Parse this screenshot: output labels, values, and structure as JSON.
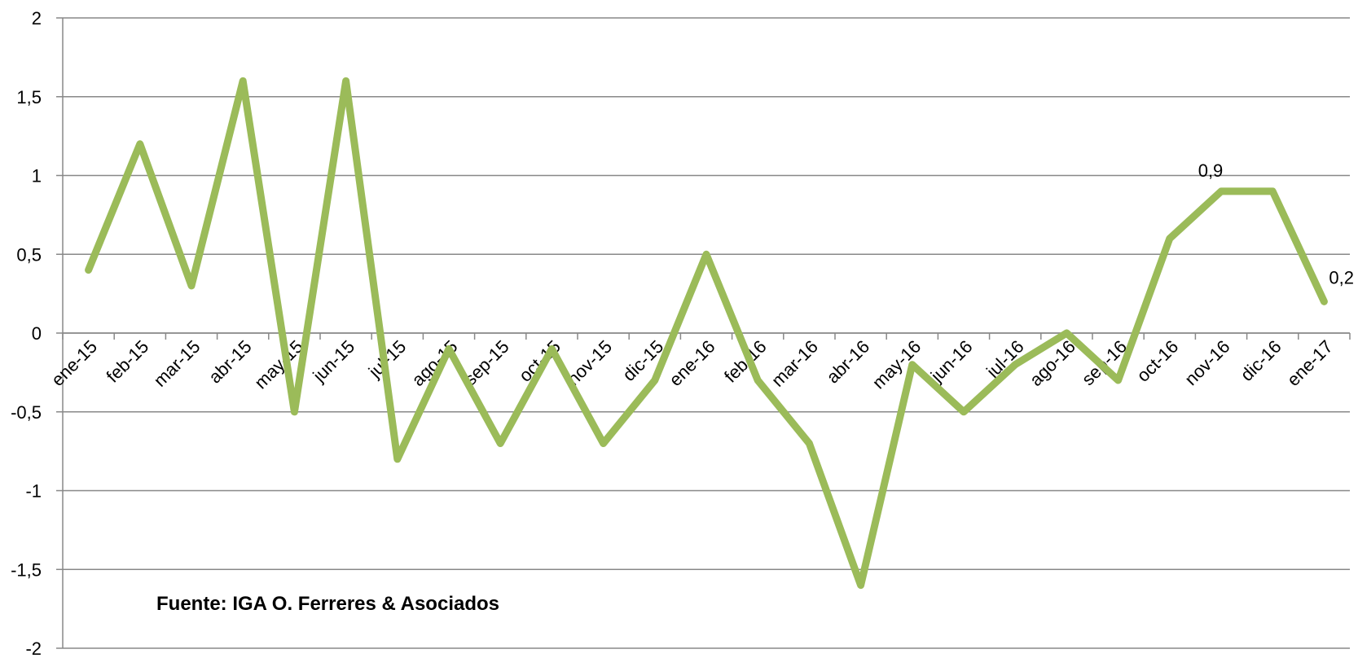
{
  "chart_data": {
    "type": "line",
    "title": "",
    "xlabel": "",
    "ylabel": "",
    "ylim": [
      -2,
      2
    ],
    "y_ticks": [
      2,
      1.5,
      1,
      0.5,
      0,
      -0.5,
      -1,
      -1.5,
      -2
    ],
    "y_tick_labels": [
      "2",
      "1,5",
      "1",
      "0,5",
      "0",
      "-0,5",
      "-1",
      "-1,5",
      "-2"
    ],
    "grid": true,
    "legend": "none",
    "line_color": "#9bbb59",
    "categories": [
      "ene-15",
      "feb-15",
      "mar-15",
      "abr-15",
      "may-15",
      "jun-15",
      "jul-15",
      "ago-15",
      "sep-15",
      "oct-15",
      "nov-15",
      "dic-15",
      "ene-16",
      "feb-16",
      "mar-16",
      "abr-16",
      "may-16",
      "jun-16",
      "jul-16",
      "ago-16",
      "sep-16",
      "oct-16",
      "nov-16",
      "dic-16",
      "ene-17"
    ],
    "series": [
      {
        "values": [
          0.4,
          1.2,
          0.3,
          1.6,
          -0.5,
          1.6,
          -0.8,
          -0.1,
          -0.7,
          -0.1,
          -0.7,
          -0.3,
          0.5,
          -0.3,
          -0.7,
          -1.6,
          -0.2,
          -0.5,
          -0.2,
          0.0,
          -0.3,
          0.6,
          0.9,
          0.9,
          0.2
        ]
      }
    ],
    "data_labels": [
      {
        "index": 22,
        "text": "0,9"
      },
      {
        "index": 24,
        "text": "0,2"
      }
    ],
    "annotation": "Fuente: IGA O. Ferreres & Asociados"
  }
}
